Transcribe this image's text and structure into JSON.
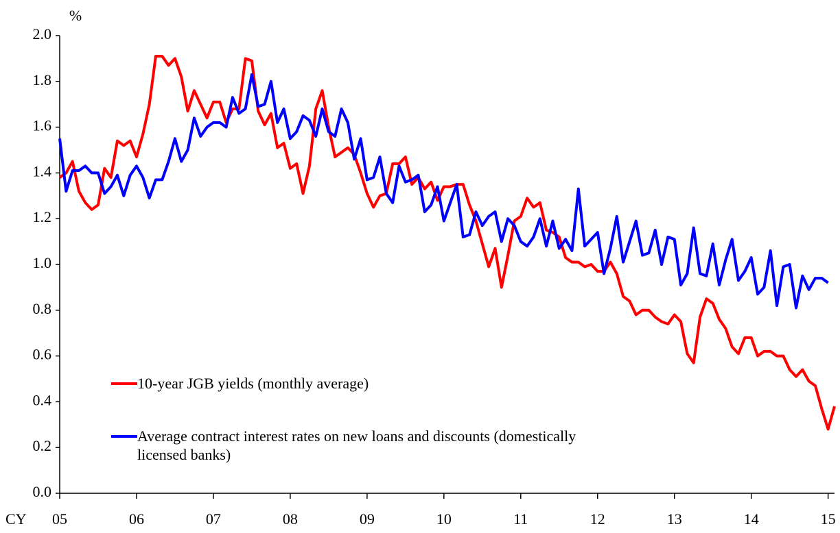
{
  "chart_data": {
    "type": "line",
    "ylabel": "%",
    "xlabel": "CY",
    "categories": [
      "05",
      null,
      null,
      null,
      null,
      null,
      null,
      null,
      null,
      null,
      null,
      null,
      "06",
      null,
      null,
      null,
      null,
      null,
      null,
      null,
      null,
      null,
      null,
      null,
      "07",
      null,
      null,
      null,
      null,
      null,
      null,
      null,
      null,
      null,
      null,
      null,
      "08",
      null,
      null,
      null,
      null,
      null,
      null,
      null,
      null,
      null,
      null,
      null,
      "09",
      null,
      null,
      null,
      null,
      null,
      null,
      null,
      null,
      null,
      null,
      null,
      "10",
      null,
      null,
      null,
      null,
      null,
      null,
      null,
      null,
      null,
      null,
      null,
      "11",
      null,
      null,
      null,
      null,
      null,
      null,
      null,
      null,
      null,
      null,
      null,
      "12",
      null,
      null,
      null,
      null,
      null,
      null,
      null,
      null,
      null,
      null,
      null,
      "13",
      null,
      null,
      null,
      null,
      null,
      null,
      null,
      null,
      null,
      null,
      null,
      "14",
      null,
      null,
      null,
      null,
      null,
      null,
      null,
      null,
      null,
      null,
      null,
      "15",
      null
    ],
    "series": [
      {
        "name": "10-year JGB yields (monthly average)",
        "color": "#ff0000",
        "values": [
          1.38,
          1.4,
          1.45,
          1.32,
          1.27,
          1.24,
          1.26,
          1.42,
          1.38,
          1.54,
          1.52,
          1.54,
          1.47,
          1.57,
          1.7,
          1.91,
          1.91,
          1.87,
          1.9,
          1.82,
          1.67,
          1.76,
          1.7,
          1.64,
          1.71,
          1.71,
          1.62,
          1.68,
          1.68,
          1.9,
          1.89,
          1.67,
          1.61,
          1.66,
          1.51,
          1.53,
          1.42,
          1.44,
          1.31,
          1.43,
          1.68,
          1.76,
          1.6,
          1.47,
          1.49,
          1.51,
          1.48,
          1.4,
          1.31,
          1.25,
          1.3,
          1.31,
          1.44,
          1.44,
          1.47,
          1.35,
          1.38,
          1.33,
          1.36,
          1.28,
          1.34,
          1.34,
          1.35,
          1.35,
          1.26,
          1.19,
          1.09,
          0.99,
          1.07,
          0.9,
          1.04,
          1.19,
          1.21,
          1.29,
          1.25,
          1.27,
          1.15,
          1.14,
          1.12,
          1.03,
          1.01,
          1.01,
          0.99,
          1.0,
          0.97,
          0.97,
          1.01,
          0.96,
          0.86,
          0.84,
          0.78,
          0.8,
          0.8,
          0.77,
          0.75,
          0.74,
          0.78,
          0.75,
          0.61,
          0.57,
          0.77,
          0.85,
          0.83,
          0.76,
          0.72,
          0.64,
          0.61,
          0.68,
          0.68,
          0.6,
          0.62,
          0.62,
          0.6,
          0.6,
          0.54,
          0.51,
          0.54,
          0.49,
          0.47,
          0.37,
          0.28,
          0.38
        ]
      },
      {
        "name": "Average contract interest rates on new loans and discounts (domestically licensed banks)",
        "color": "#0000ff",
        "values": [
          1.55,
          1.32,
          1.41,
          1.41,
          1.43,
          1.4,
          1.4,
          1.31,
          1.34,
          1.39,
          1.3,
          1.39,
          1.43,
          1.38,
          1.29,
          1.37,
          1.37,
          1.45,
          1.55,
          1.45,
          1.5,
          1.64,
          1.56,
          1.6,
          1.62,
          1.62,
          1.6,
          1.73,
          1.66,
          1.68,
          1.83,
          1.69,
          1.7,
          1.8,
          1.62,
          1.68,
          1.55,
          1.58,
          1.65,
          1.63,
          1.56,
          1.68,
          1.58,
          1.56,
          1.68,
          1.62,
          1.46,
          1.55,
          1.37,
          1.38,
          1.47,
          1.31,
          1.27,
          1.43,
          1.36,
          1.37,
          1.39,
          1.23,
          1.26,
          1.34,
          1.19,
          1.27,
          1.35,
          1.12,
          1.13,
          1.23,
          1.17,
          1.21,
          1.23,
          1.1,
          1.2,
          1.17,
          1.1,
          1.08,
          1.12,
          1.2,
          1.08,
          1.19,
          1.07,
          1.11,
          1.06,
          1.33,
          1.08,
          1.11,
          1.14,
          0.96,
          1.07,
          1.21,
          1.01,
          1.1,
          1.19,
          1.04,
          1.05,
          1.15,
          1.0,
          1.12,
          1.11,
          0.91,
          0.96,
          1.16,
          0.96,
          0.95,
          1.09,
          0.91,
          1.02,
          1.11,
          0.93,
          0.97,
          1.03,
          0.87,
          0.9,
          1.06,
          0.82,
          0.99,
          1.0,
          0.81,
          0.95,
          0.89,
          0.94,
          0.94,
          0.92,
          null
        ]
      }
    ],
    "ylim": [
      0,
      2
    ],
    "yticks": [
      {
        "value": 0,
        "label": "0.0"
      },
      {
        "value": 0.2,
        "label": "0.2"
      },
      {
        "value": 0.4,
        "label": "0.4"
      },
      {
        "value": 0.6,
        "label": "0.6"
      },
      {
        "value": 0.8,
        "label": "0.8"
      },
      {
        "value": 1,
        "label": "1.0"
      },
      {
        "value": 1.2,
        "label": "1.2"
      },
      {
        "value": 1.4,
        "label": "1.4"
      },
      {
        "value": 1.6,
        "label": "1.6"
      },
      {
        "value": 1.8,
        "label": "1.8"
      },
      {
        "value": 2,
        "label": "2.0"
      }
    ],
    "grid": false
  }
}
